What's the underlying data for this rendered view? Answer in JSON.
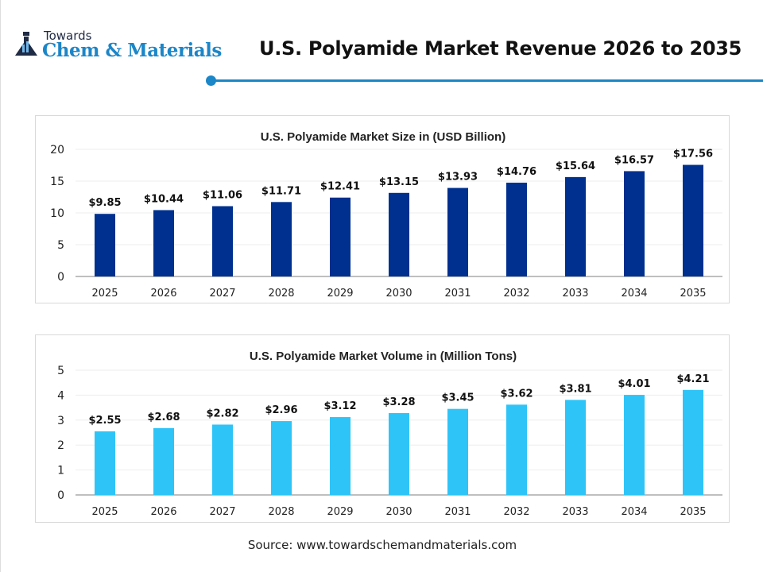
{
  "header": {
    "logo_top": "Towards",
    "logo_main": "Chem & Materials",
    "title": "U.S. Polyamide Market Revenue 2026 to 2035",
    "accent": "#1b86c8"
  },
  "chart_data": [
    {
      "type": "bar",
      "title": "U.S. Polyamide Market Size in (USD Billion)",
      "categories": [
        "2025",
        "2026",
        "2027",
        "2028",
        "2029",
        "2030",
        "2031",
        "2032",
        "2033",
        "2034",
        "2035"
      ],
      "values": [
        9.85,
        10.44,
        11.06,
        11.71,
        12.41,
        13.15,
        13.93,
        14.76,
        15.64,
        16.57,
        17.56
      ],
      "labels": [
        "$9.85",
        "$10.44",
        "$11.06",
        "$11.71",
        "$12.41",
        "$13.15",
        "$13.93",
        "$14.76",
        "$15.64",
        "$16.57",
        "$17.56"
      ],
      "yticks": [
        "0",
        "5",
        "10",
        "15",
        "20"
      ],
      "ylim": [
        0,
        20
      ],
      "grid": true,
      "color": "#00308f"
    },
    {
      "type": "bar",
      "title": "U.S. Polyamide Market Volume in (Million Tons)",
      "categories": [
        "2025",
        "2026",
        "2027",
        "2028",
        "2029",
        "2030",
        "2031",
        "2032",
        "2033",
        "2034",
        "2035"
      ],
      "values": [
        2.55,
        2.68,
        2.82,
        2.96,
        3.12,
        3.28,
        3.45,
        3.62,
        3.81,
        4.01,
        4.21
      ],
      "labels": [
        "$2.55",
        "$2.68",
        "$2.82",
        "$2.96",
        "$3.12",
        "$3.28",
        "$3.45",
        "$3.62",
        "$3.81",
        "$4.01",
        "$4.21"
      ],
      "yticks": [
        "0",
        "1",
        "2",
        "3",
        "4",
        "5"
      ],
      "ylim": [
        0,
        5
      ],
      "grid": true,
      "color": "#2ec4f8"
    }
  ],
  "footer": {
    "source": "Source: www.towardschemandmaterials.com"
  }
}
